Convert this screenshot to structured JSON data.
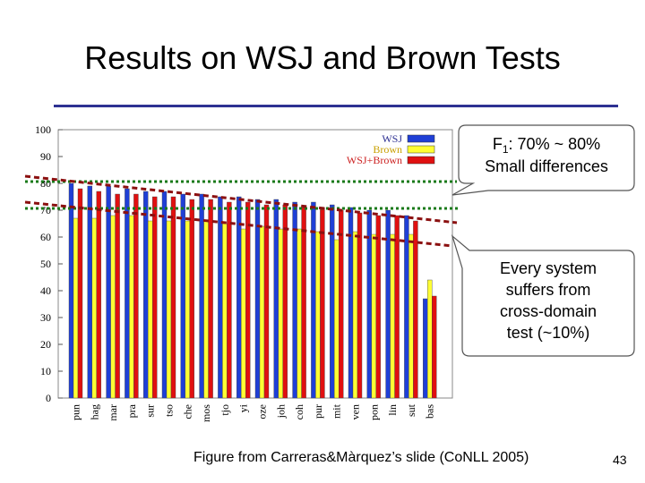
{
  "slide": {
    "title": "Results on WSJ and Brown Tests",
    "caption": "Figure from Carreras&Màrquez’s slide (CoNLL 2005)",
    "page_number": "43"
  },
  "callouts": {
    "top_prefix": "F",
    "top_sub": "1",
    "top_suffix": ": 70% ~ 80%",
    "top_line2": "Small differences",
    "bottom_lines": [
      "Every system",
      "suffers from",
      "cross-domain",
      "test (~10%)"
    ]
  },
  "colors": {
    "wsj": "#1f3fd6",
    "brown": "#ffff33",
    "combined": "#e01010",
    "title_rule": "#2e3192",
    "green_line": "#1a7a1a",
    "red_dashed": "#8b1010"
  },
  "chart_data": {
    "type": "bar",
    "categories": [
      "pun",
      "hag",
      "mar",
      "pra",
      "sur",
      "tso",
      "che",
      "mos",
      "tjo",
      "yi",
      "oze",
      "joh",
      "coh",
      "pur",
      "mit",
      "ven",
      "pon",
      "lin",
      "sut",
      "bas"
    ],
    "series": [
      {
        "name": "WSJ",
        "values": [
          80,
          79,
          79,
          78,
          77,
          77,
          76,
          76,
          75,
          75,
          74,
          74,
          73,
          73,
          72,
          71,
          70,
          70,
          68,
          37
        ]
      },
      {
        "name": "Brown",
        "values": [
          67,
          67,
          68,
          68,
          66,
          66,
          66,
          66,
          65,
          63,
          64,
          63,
          63,
          62,
          59,
          62,
          61,
          61,
          61,
          44
        ]
      },
      {
        "name": "WSJ+Brown",
        "values": [
          78,
          77,
          76,
          76,
          75,
          75,
          74,
          74,
          73,
          73,
          72,
          72,
          71,
          71,
          70,
          69,
          68,
          68,
          66,
          38
        ]
      }
    ],
    "ylim": [
      0,
      100
    ],
    "yticks": [
      0,
      10,
      20,
      30,
      40,
      50,
      60,
      70,
      80,
      90,
      100
    ],
    "legend_position": "top-right",
    "grid": false
  }
}
